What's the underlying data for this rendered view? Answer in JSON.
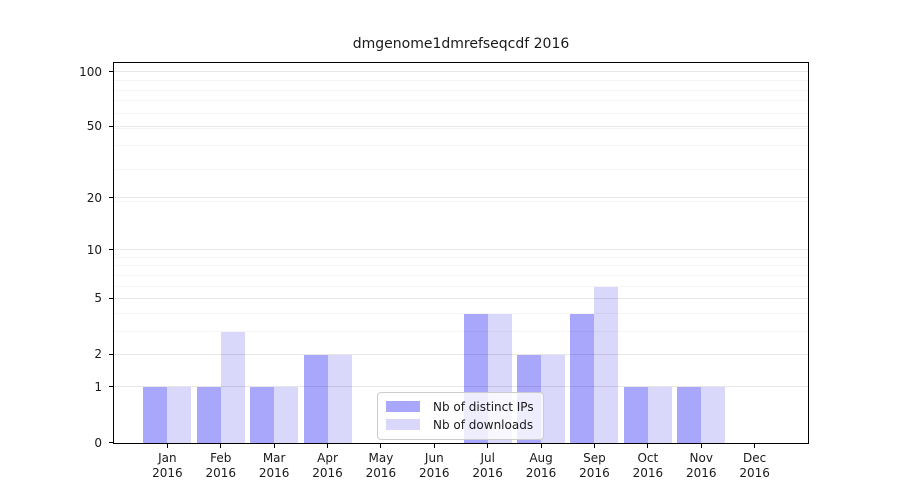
{
  "title": "dmgenome1dmrefseqcdf 2016",
  "chart_data": {
    "type": "bar",
    "title": "dmgenome1dmrefseqcdf 2016",
    "categories": [
      "Jan",
      "Feb",
      "Mar",
      "Apr",
      "May",
      "Jun",
      "Jul",
      "Aug",
      "Sep",
      "Oct",
      "Nov",
      "Dec"
    ],
    "year_label": "2016",
    "series": [
      {
        "name": "Nb of distinct IPs",
        "color": "#a9a7fb",
        "values": [
          1,
          1,
          1,
          2,
          0,
          0,
          4,
          2,
          4,
          1,
          1,
          0
        ]
      },
      {
        "name": "Nb of downloads",
        "color": "#d9d8fb",
        "values": [
          1,
          3,
          1,
          2,
          0,
          0,
          4,
          2,
          6,
          1,
          1,
          0
        ]
      }
    ],
    "xlabel": "",
    "ylabel": "",
    "yaxis": {
      "scale": "log1p",
      "major_ticks": [
        0,
        1,
        2,
        5,
        10,
        20,
        50,
        100
      ],
      "minor_gridlines": [
        3,
        4,
        6,
        7,
        8,
        9,
        19,
        29,
        39,
        49,
        59,
        69,
        79,
        89
      ],
      "ylim": [
        0,
        100
      ]
    },
    "grid": true,
    "legend_position": "lower center-left inside plot"
  }
}
